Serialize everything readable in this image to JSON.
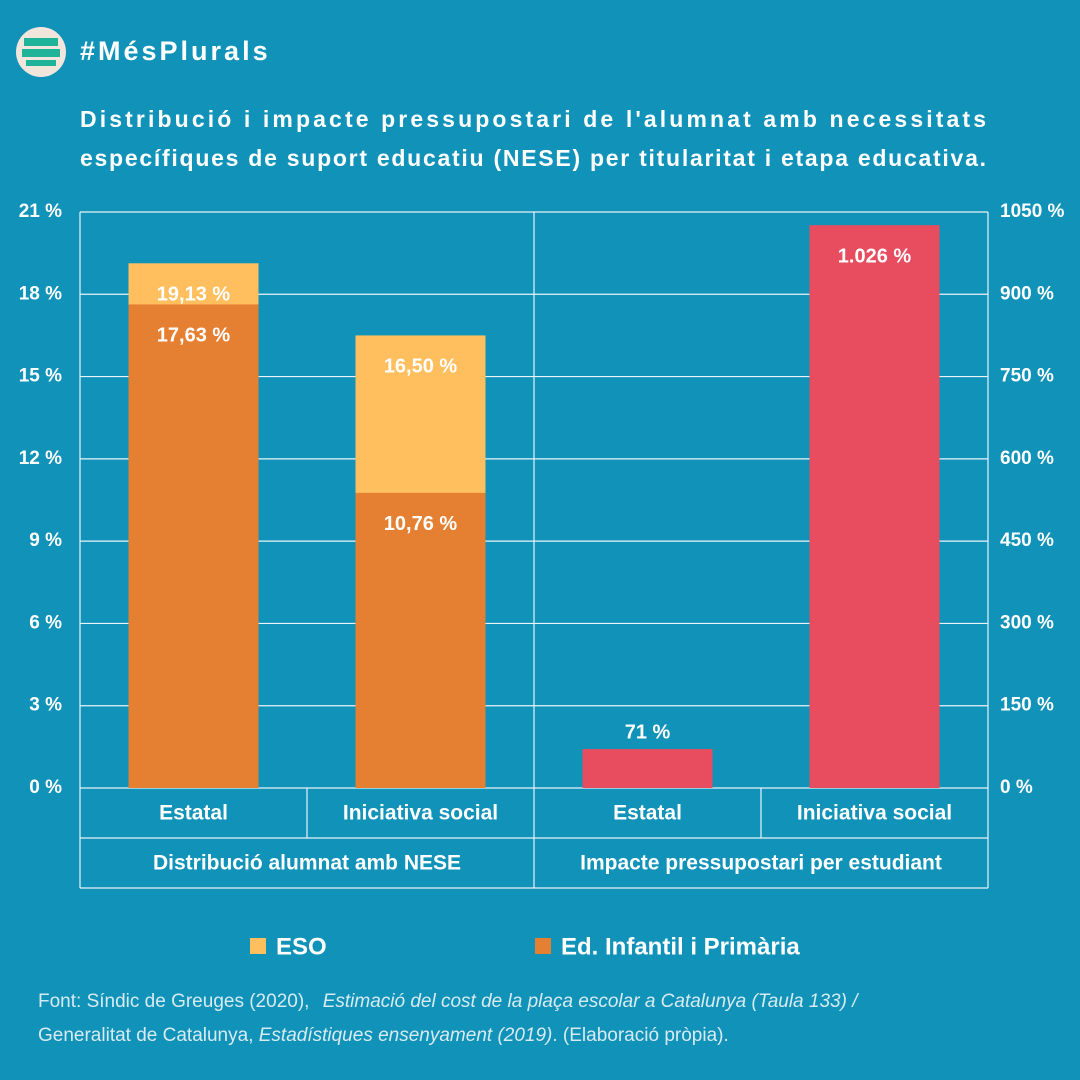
{
  "header": "#MésPlurals",
  "title": [
    "Distribució i impacte pressupostari de l'alumnat amb necessitats",
    "específiques de suport educatiu (NESE) per titularitat i etapa educativa."
  ],
  "source": [
    "Font: Síndic de Greuges (2020),",
    "Estimació del cost de la plaça escolar a Catalunya (Taula 133) /",
    "Generalitat de Catalunya,",
    "Estadístiques ensenyament (2019)",
    ". (Elaboració pròpia)."
  ],
  "chart_data": [
    {
      "type": "bar",
      "xlabel": "Distribució alumnat amb NESE",
      "categories": [
        "Estatal",
        "Iniciativa social"
      ],
      "series": [
        {
          "name": "ESO",
          "color": "#ffbf5e",
          "values": [
            19.13,
            16.5
          ],
          "value_labels": [
            "19,13 %",
            "16,50 %"
          ]
        },
        {
          "name": "Ed. Infantil i Primària",
          "color": "#e57f31",
          "values": [
            17.63,
            10.76
          ],
          "value_labels": [
            "17,63 %",
            "10,76 %"
          ]
        }
      ],
      "ylim": [
        0,
        21
      ],
      "yticks": [
        {
          "value": 0,
          "label": "0 %"
        },
        {
          "value": 3,
          "label": "3 %"
        },
        {
          "value": 6,
          "label": "6 %"
        },
        {
          "value": 9,
          "label": "9 %"
        },
        {
          "value": 12,
          "label": "12 %"
        },
        {
          "value": 15,
          "label": "15 %"
        },
        {
          "value": 18,
          "label": "18 %"
        },
        {
          "value": 21,
          "label": "21 %"
        }
      ],
      "grid": true
    },
    {
      "type": "bar",
      "xlabel": "Impacte pressupostari per estudiant",
      "categories": [
        "Estatal",
        "Iniciativa social"
      ],
      "series": [
        {
          "color": "#e84c5f",
          "axis": "y2",
          "values": [
            71,
            1026
          ],
          "value_labels": [
            "71 %",
            "1.026 %"
          ]
        }
      ],
      "y2lim": [
        0,
        1050
      ],
      "y2ticks": [
        {
          "value": 0,
          "label": "0 %"
        },
        {
          "value": 150,
          "label": "150 %"
        },
        {
          "value": 300,
          "label": "300 %"
        },
        {
          "value": 450,
          "label": "450 %"
        },
        {
          "value": 600,
          "label": "600 %"
        },
        {
          "value": 750,
          "label": "750 %"
        },
        {
          "value": 900,
          "label": "900 %"
        },
        {
          "value": 1050,
          "label": "1050 %"
        }
      ]
    }
  ]
}
